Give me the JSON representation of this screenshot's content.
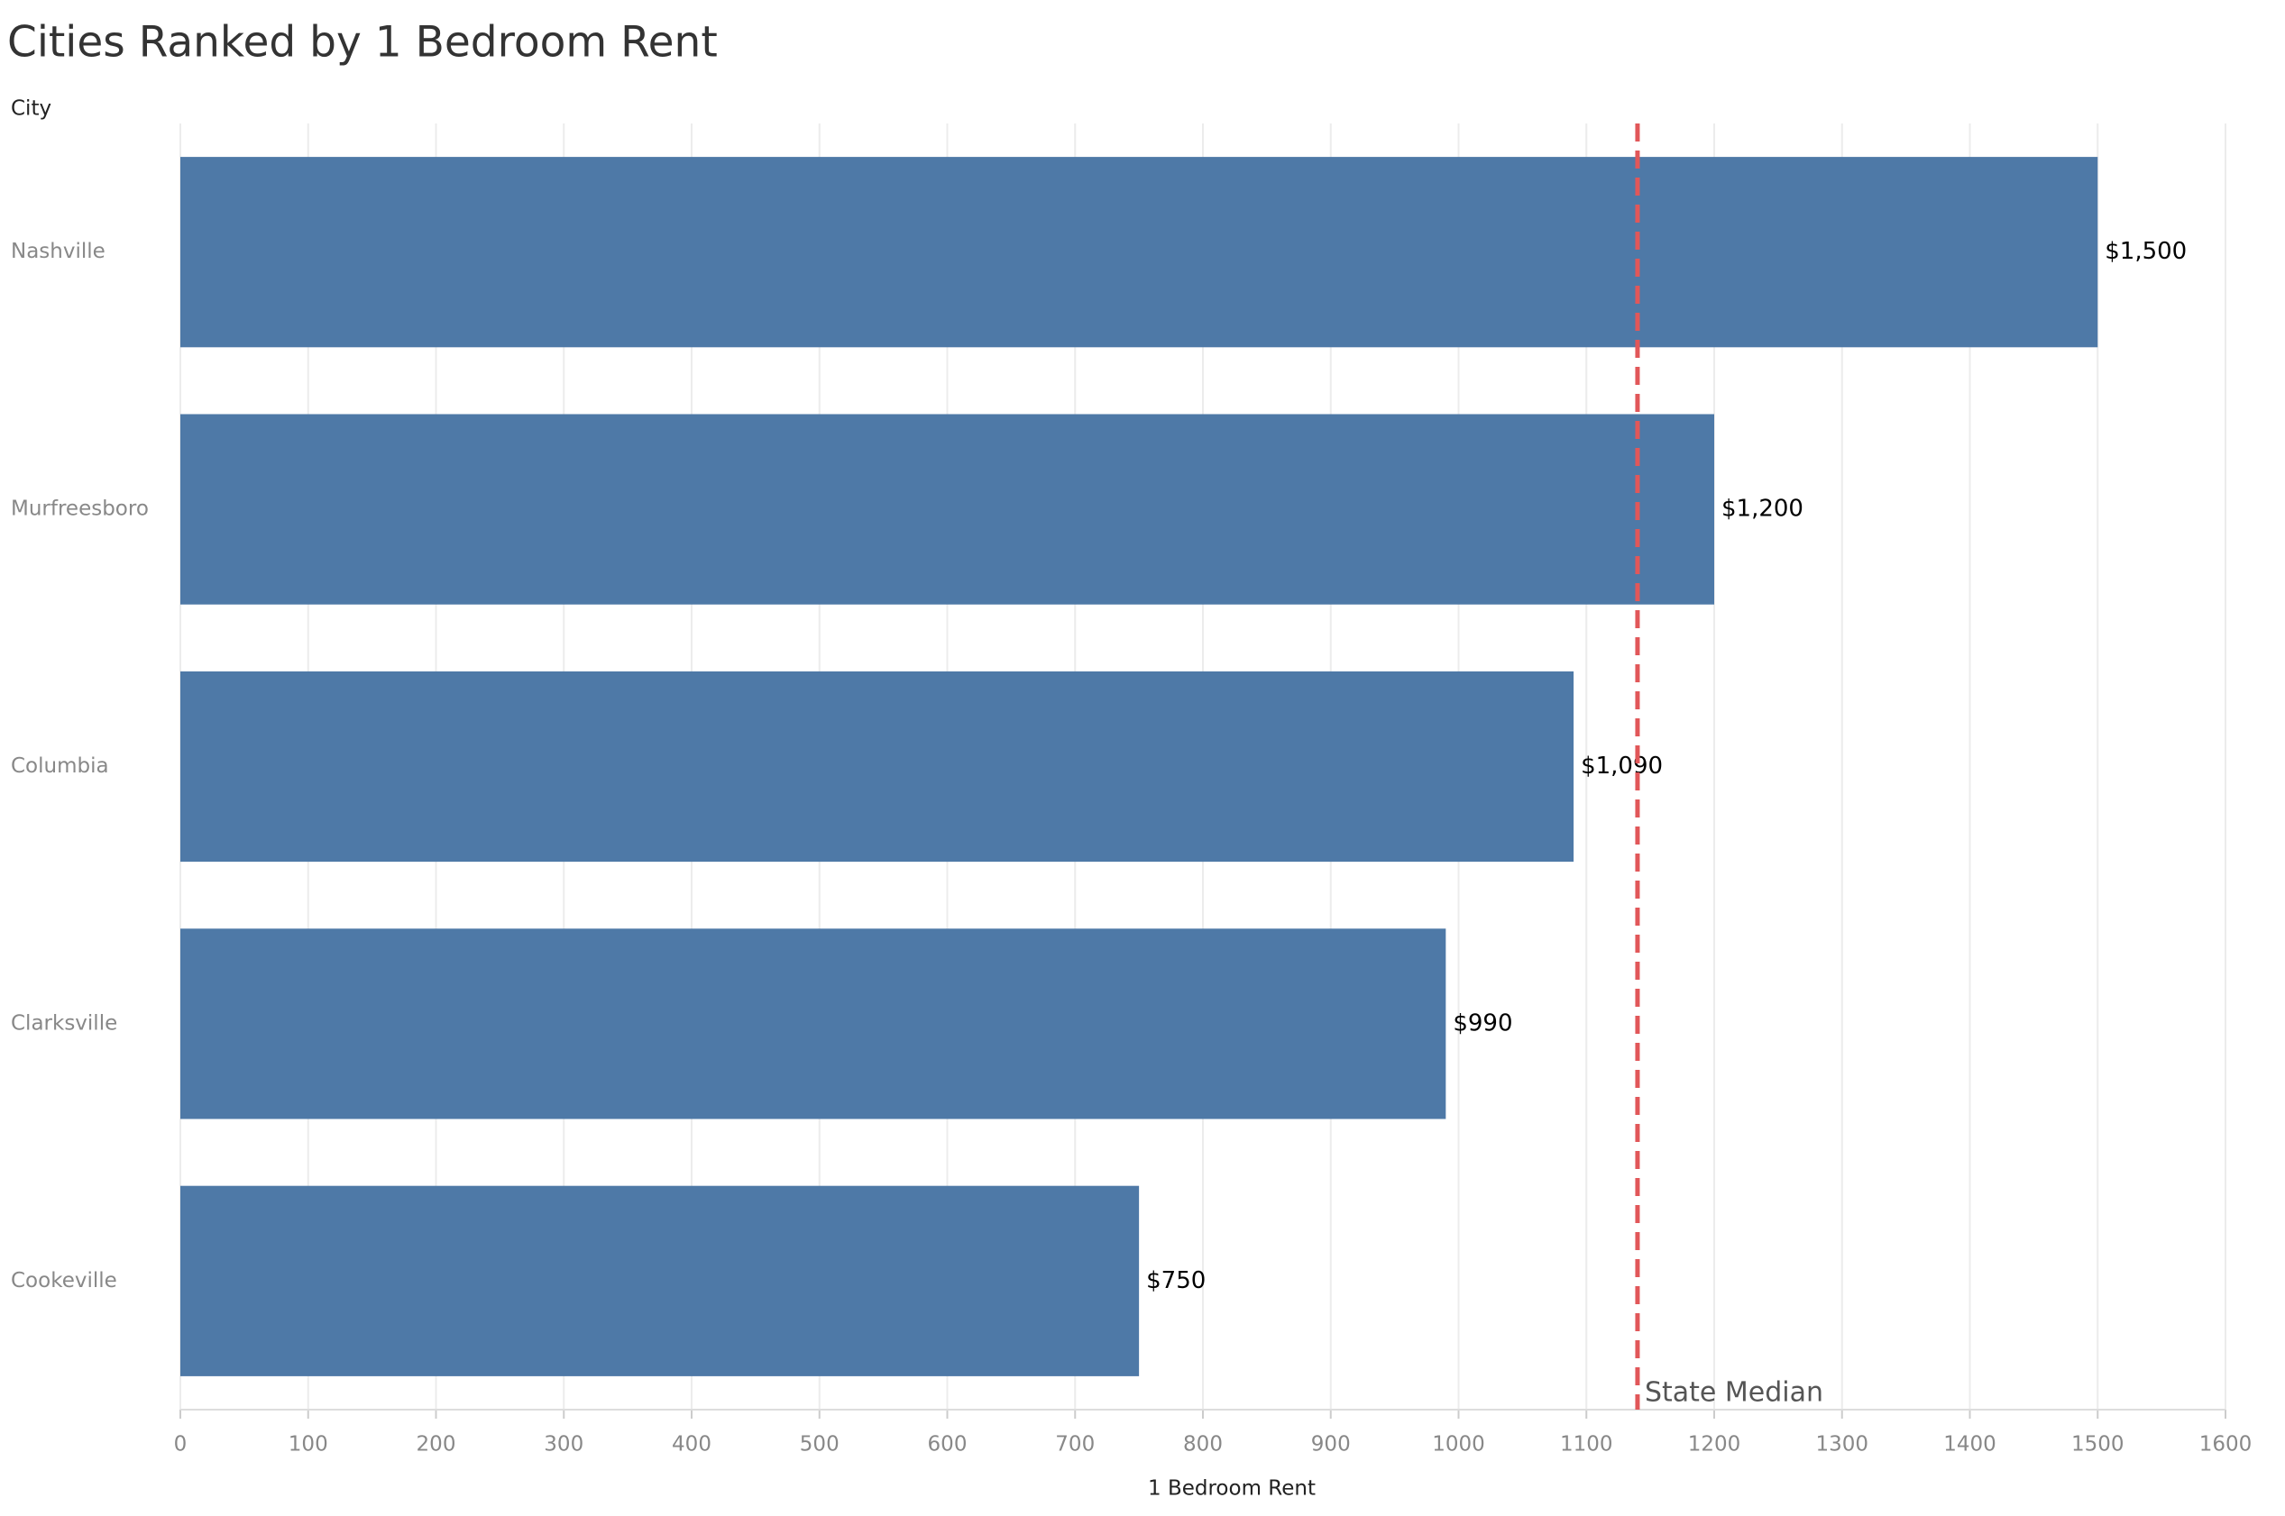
{
  "chart_data": {
    "type": "bar",
    "orientation": "horizontal",
    "title": "Cities Ranked by 1 Bedroom Rent",
    "y_label": "City",
    "x_label": "1 Bedroom Rent",
    "categories": [
      "Nashville",
      "Murfreesboro",
      "Columbia",
      "Clarksville",
      "Cookeville"
    ],
    "values": [
      1500,
      1200,
      1090,
      990,
      750
    ],
    "value_labels": [
      "$1,500",
      "$1,200",
      "$1,090",
      "$990",
      "$750"
    ],
    "color": "#4e79a7",
    "xlim": [
      0,
      1600
    ],
    "xticks": [
      0,
      100,
      200,
      300,
      400,
      500,
      600,
      700,
      800,
      900,
      1000,
      1100,
      1200,
      1300,
      1400,
      1500,
      1600
    ],
    "grid": true,
    "reference_line": {
      "value": 1140,
      "label": "State Median",
      "color": "#e15759"
    }
  }
}
